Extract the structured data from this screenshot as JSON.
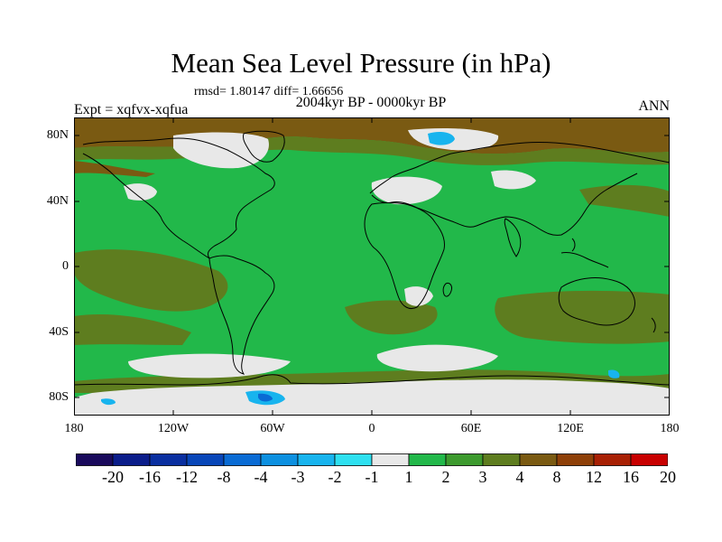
{
  "title": "Mean Sea Level Pressure (in hPa)",
  "stats": "rmsd= 1.80147 diff= 1.66656",
  "period": "2004kyr BP - 0000kyr BP",
  "experiment": "Expt = xqfvx-xqfua",
  "season": "ANN",
  "lat_labels": [
    "80N",
    "40N",
    "0",
    "40S",
    "80S"
  ],
  "lon_labels": [
    "180",
    "120W",
    "60W",
    "0",
    "60E",
    "120E",
    "180"
  ],
  "colorbar": {
    "labels": [
      "-20",
      "-16",
      "-12",
      "-8",
      "-4",
      "-3",
      "-2",
      "-1",
      "1",
      "2",
      "3",
      "4",
      "8",
      "12",
      "16",
      "20"
    ],
    "colors": [
      "#1a0a5c",
      "#0b1d8a",
      "#0a2fa0",
      "#0846b8",
      "#0a6bd4",
      "#0d90e0",
      "#18b4ee",
      "#2ee0f0",
      "#e8e8e8",
      "#22b84a",
      "#3d9a2e",
      "#5e7d1f",
      "#7a5a12",
      "#8e4008",
      "#a82004",
      "#c80000"
    ]
  },
  "map_colors": {
    "base": "#22b84a",
    "moderate": "#5e7d1f",
    "strong": "#7a5a12",
    "near_zero": "#e8e8e8",
    "negative": "#18b4ee",
    "negative_strong": "#0a6bd4",
    "coast": "#000000"
  }
}
